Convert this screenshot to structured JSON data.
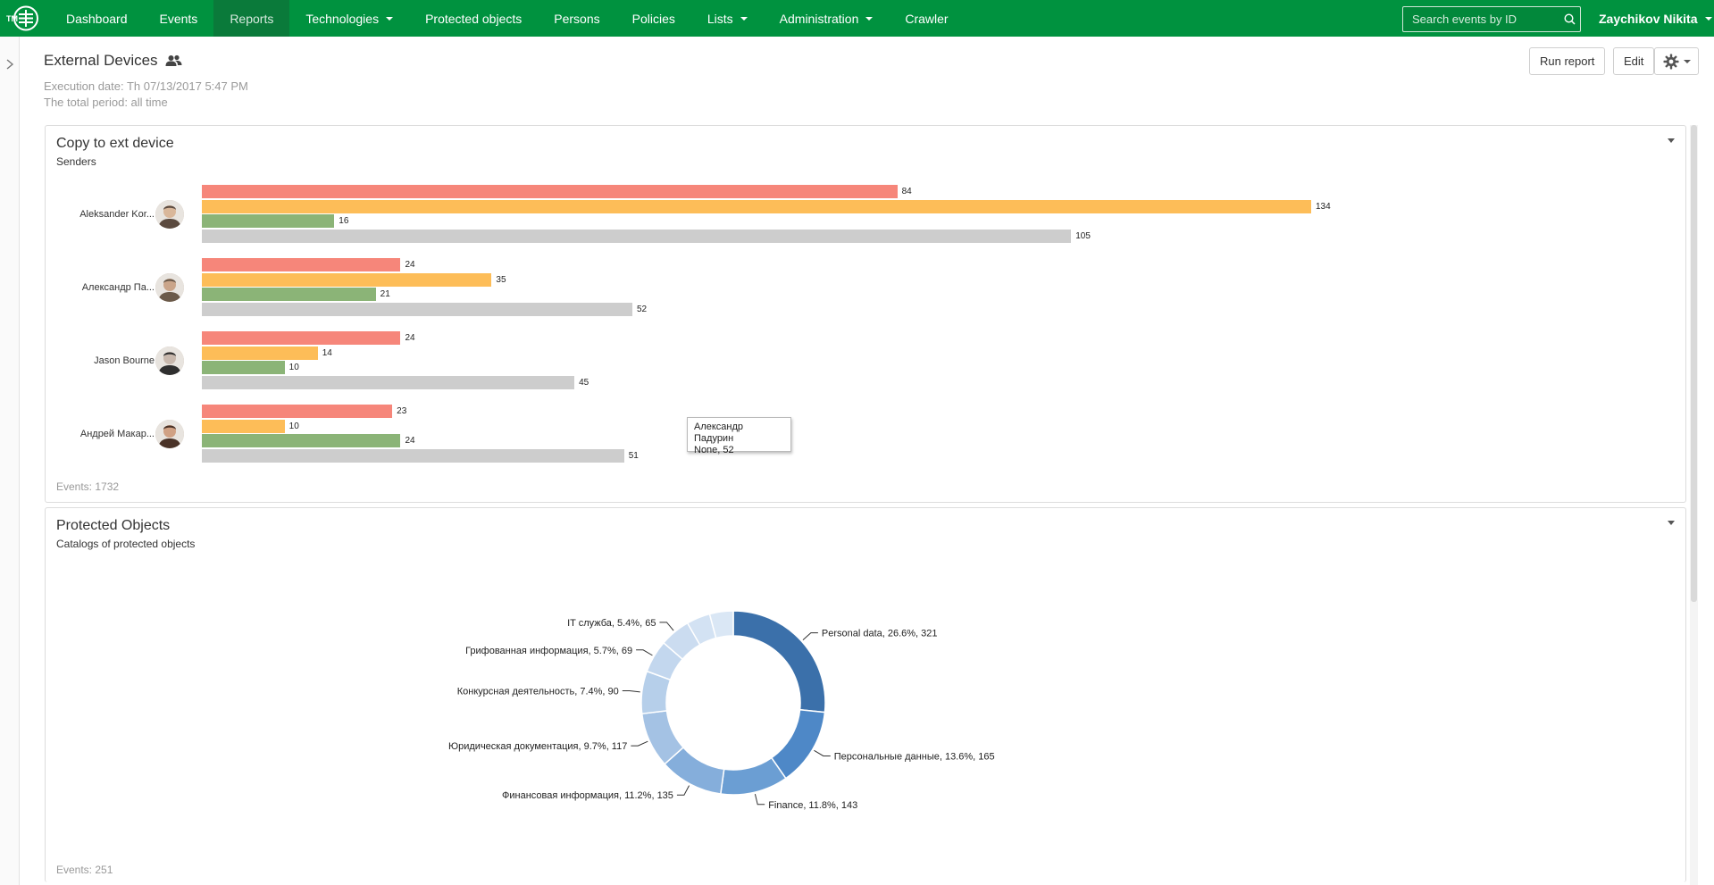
{
  "nav": {
    "logo_text": "TM",
    "items": [
      {
        "label": "Dashboard",
        "caret": false,
        "active": false
      },
      {
        "label": "Events",
        "caret": false,
        "active": false
      },
      {
        "label": "Reports",
        "caret": false,
        "active": true
      },
      {
        "label": "Technologies",
        "caret": true,
        "active": false
      },
      {
        "label": "Protected objects",
        "caret": false,
        "active": false
      },
      {
        "label": "Persons",
        "caret": false,
        "active": false
      },
      {
        "label": "Policies",
        "caret": false,
        "active": false
      },
      {
        "label": "Lists",
        "caret": true,
        "active": false
      },
      {
        "label": "Administration",
        "caret": true,
        "active": false
      },
      {
        "label": "Crawler",
        "caret": false,
        "active": false
      }
    ],
    "search_placeholder": "Search events by ID",
    "user_name": "Zaychikov Nikita"
  },
  "colors": {
    "nav_bg": "#00923f",
    "bar_red": "#f6867a",
    "bar_orange": "#fdbd58",
    "bar_green": "#8bb477",
    "bar_gray": "#cdcdcd",
    "donut_dark": "#3b70aa"
  },
  "header": {
    "title": "External Devices",
    "execution_date": "Execution date: Th 07/13/2017 5:47 PM",
    "total_period": "The total period: all time",
    "run_report_label": "Run report",
    "edit_label": "Edit"
  },
  "panel1": {
    "title": "Copy to ext device",
    "subtitle": "Senders",
    "footer": "Events: 1732",
    "tooltip": {
      "name": "Александр Падурин",
      "value": "None, 52"
    }
  },
  "panel2": {
    "title": "Protected Objects",
    "subtitle": "Catalogs of protected objects",
    "footer": "Events: 251"
  },
  "chart_data": [
    {
      "type": "bar",
      "orientation": "horizontal",
      "title": "Copy to ext device",
      "subtitle": "Senders",
      "categories": [
        "Aleksander Kor...",
        "Александр Па...",
        "Jason Bourne",
        "Андрей Макар..."
      ],
      "series": [
        {
          "color": "#f6867a",
          "values": [
            84,
            24,
            24,
            23
          ]
        },
        {
          "color": "#fdbd58",
          "values": [
            134,
            35,
            14,
            10
          ]
        },
        {
          "color": "#8bb477",
          "values": [
            16,
            21,
            10,
            24
          ]
        },
        {
          "color": "#cdcdcd",
          "values": [
            105,
            52,
            45,
            51
          ]
        }
      ]
    },
    {
      "type": "pie",
      "donut": true,
      "title": "Protected Objects",
      "subtitle": "Catalogs of protected objects",
      "slices": [
        {
          "label": "Personal data, 26.6%, 321",
          "value": 321,
          "color": "#3b70aa"
        },
        {
          "label": "Персональные данные, 13.6%, 165",
          "value": 165,
          "color": "#4e88c7"
        },
        {
          "label": "Finance, 11.8%, 143",
          "value": 143,
          "color": "#6b9ed3"
        },
        {
          "label": "Финансовая информация, 11.2%, 135",
          "value": 135,
          "color": "#85aedb"
        },
        {
          "label": "Юридическая документация, 9.7%, 117",
          "value": 117,
          "color": "#a4c2e4"
        },
        {
          "label": "Конкурсная деятельность, 7.4%, 90",
          "value": 90,
          "color": "#b6cfea"
        },
        {
          "label": "Грифованная информация, 5.7%, 69",
          "value": 69,
          "color": "#c3d7ee"
        },
        {
          "label": "IT служба, 5.4%, 65",
          "value": 65,
          "color": "#cbdcf0"
        },
        {
          "label": "",
          "value": 50,
          "color": "#d3e2f3"
        },
        {
          "label": "",
          "value": 50,
          "color": "#dae7f5"
        }
      ]
    }
  ]
}
